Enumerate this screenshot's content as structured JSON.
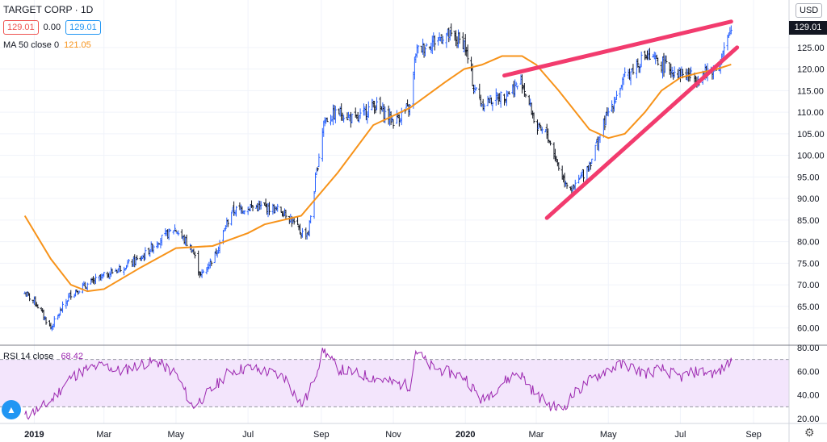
{
  "header": {
    "title": "TARGET CORP · 1D",
    "open_box": "129.01",
    "change": "0.00",
    "close_box": "129.01",
    "ma_label": "MA 50 close 0",
    "ma_value": "121.05",
    "rsi_label": "RSI 14 close",
    "rsi_value": "68.42",
    "currency": "USD",
    "last_price": "129.01"
  },
  "icons": {
    "settings": "gear-icon",
    "logo": "tradingview-logo-icon"
  },
  "colors": {
    "up": "#2962ff",
    "down": "#131722",
    "ma": "#f7931a",
    "trend": "#f23b6e",
    "rsi": "#9c27b0",
    "rsi_band": "#f3e5fc"
  },
  "chart_data": [
    {
      "type": "line",
      "title": "TARGET CORP · 1D",
      "ylim": [
        56,
        136
      ],
      "y_ticks": [
        "60.00",
        "65.00",
        "70.00",
        "75.00",
        "80.00",
        "85.00",
        "90.00",
        "95.00",
        "100.00",
        "105.00",
        "110.00",
        "115.00",
        "120.00",
        "125.00"
      ],
      "x_ticks": [
        "2019",
        "Mar",
        "May",
        "Jul",
        "Sep",
        "Nov",
        "2020",
        "Mar",
        "May",
        "Jul",
        "Sep"
      ],
      "series": [
        {
          "name": "Close",
          "x": [
            "2018-12-24",
            "2019-01-02",
            "2019-01-15",
            "2019-02-01",
            "2019-02-15",
            "2019-03-01",
            "2019-03-15",
            "2019-04-01",
            "2019-04-15",
            "2019-04-30",
            "2019-05-15",
            "2019-05-22",
            "2019-06-03",
            "2019-06-17",
            "2019-07-01",
            "2019-07-15",
            "2019-08-01",
            "2019-08-15",
            "2019-08-21",
            "2019-09-03",
            "2019-09-16",
            "2019-10-01",
            "2019-10-15",
            "2019-11-01",
            "2019-11-15",
            "2019-11-20",
            "2019-12-02",
            "2019-12-16",
            "2019-12-31",
            "2020-01-08",
            "2020-01-15",
            "2020-02-03",
            "2020-02-18",
            "2020-03-02",
            "2020-03-10",
            "2020-03-23",
            "2020-04-01",
            "2020-04-15",
            "2020-05-01",
            "2020-05-15",
            "2020-06-01",
            "2020-06-15",
            "2020-07-01",
            "2020-07-15",
            "2020-08-03",
            "2020-08-13"
          ],
          "values": [
            68,
            66,
            60,
            68,
            70,
            72,
            74,
            76,
            80,
            83,
            78,
            72,
            77,
            87,
            88,
            88,
            87,
            82,
            82,
            108,
            110,
            108,
            112,
            108,
            111,
            124,
            126,
            128,
            126,
            116,
            112,
            114,
            117,
            106,
            105,
            95,
            92,
            98,
            110,
            118,
            123,
            121,
            119,
            118,
            121,
            129
          ]
        },
        {
          "name": "MA 50",
          "x": [
            "2018-12-24",
            "2019-01-15",
            "2019-02-01",
            "2019-02-15",
            "2019-03-01",
            "2019-04-01",
            "2019-05-01",
            "2019-06-01",
            "2019-07-01",
            "2019-07-15",
            "2019-08-15",
            "2019-09-15",
            "2019-10-15",
            "2019-11-15",
            "2019-12-15",
            "2019-12-31",
            "2020-01-15",
            "2020-02-01",
            "2020-02-18",
            "2020-03-01",
            "2020-03-20",
            "2020-04-15",
            "2020-05-01",
            "2020-05-15",
            "2020-06-01",
            "2020-06-15",
            "2020-07-01",
            "2020-07-15",
            "2020-08-01",
            "2020-08-13"
          ],
          "values": [
            86,
            76,
            70,
            68.5,
            69,
            74,
            78.5,
            79,
            82,
            84,
            86,
            96,
            107,
            111,
            117,
            120,
            121,
            123,
            123,
            121,
            115,
            106,
            104,
            105,
            110,
            115,
            118,
            119,
            120,
            121.05
          ]
        },
        {
          "name": "Wedge upper",
          "x": [
            "2020-02-03",
            "2020-08-13"
          ],
          "values": [
            118.5,
            131
          ]
        },
        {
          "name": "Wedge lower",
          "x": [
            "2020-03-10",
            "2020-08-18"
          ],
          "values": [
            85.5,
            125
          ]
        }
      ]
    },
    {
      "type": "line",
      "title": "RSI 14 close",
      "ylim": [
        16,
        82
      ],
      "y_ticks": [
        "20.00",
        "40.00",
        "60.00",
        "80.00"
      ],
      "bands": [
        30,
        70
      ],
      "series": [
        {
          "name": "RSI 14 close",
          "x": [
            "2018-12-24",
            "2019-01-08",
            "2019-01-15",
            "2019-02-01",
            "2019-02-15",
            "2019-03-01",
            "2019-03-15",
            "2019-04-01",
            "2019-04-15",
            "2019-05-01",
            "2019-05-15",
            "2019-06-01",
            "2019-06-15",
            "2019-07-01",
            "2019-07-15",
            "2019-08-01",
            "2019-08-15",
            "2019-08-21",
            "2019-09-03",
            "2019-09-15",
            "2019-10-01",
            "2019-10-15",
            "2019-11-01",
            "2019-11-15",
            "2019-11-20",
            "2019-12-01",
            "2019-12-15",
            "2020-01-01",
            "2020-01-15",
            "2020-02-01",
            "2020-02-15",
            "2020-03-01",
            "2020-03-15",
            "2020-03-23",
            "2020-04-01",
            "2020-04-15",
            "2020-05-01",
            "2020-05-15",
            "2020-06-01",
            "2020-06-15",
            "2020-07-01",
            "2020-07-15",
            "2020-08-01",
            "2020-08-13"
          ],
          "values": [
            22,
            30,
            35,
            55,
            62,
            65,
            60,
            66,
            68,
            58,
            30,
            45,
            60,
            63,
            60,
            55,
            32,
            40,
            78,
            62,
            58,
            55,
            50,
            48,
            78,
            65,
            60,
            55,
            35,
            50,
            60,
            40,
            30,
            28,
            40,
            52,
            62,
            66,
            58,
            62,
            55,
            60,
            58,
            68.42
          ]
        }
      ]
    }
  ]
}
